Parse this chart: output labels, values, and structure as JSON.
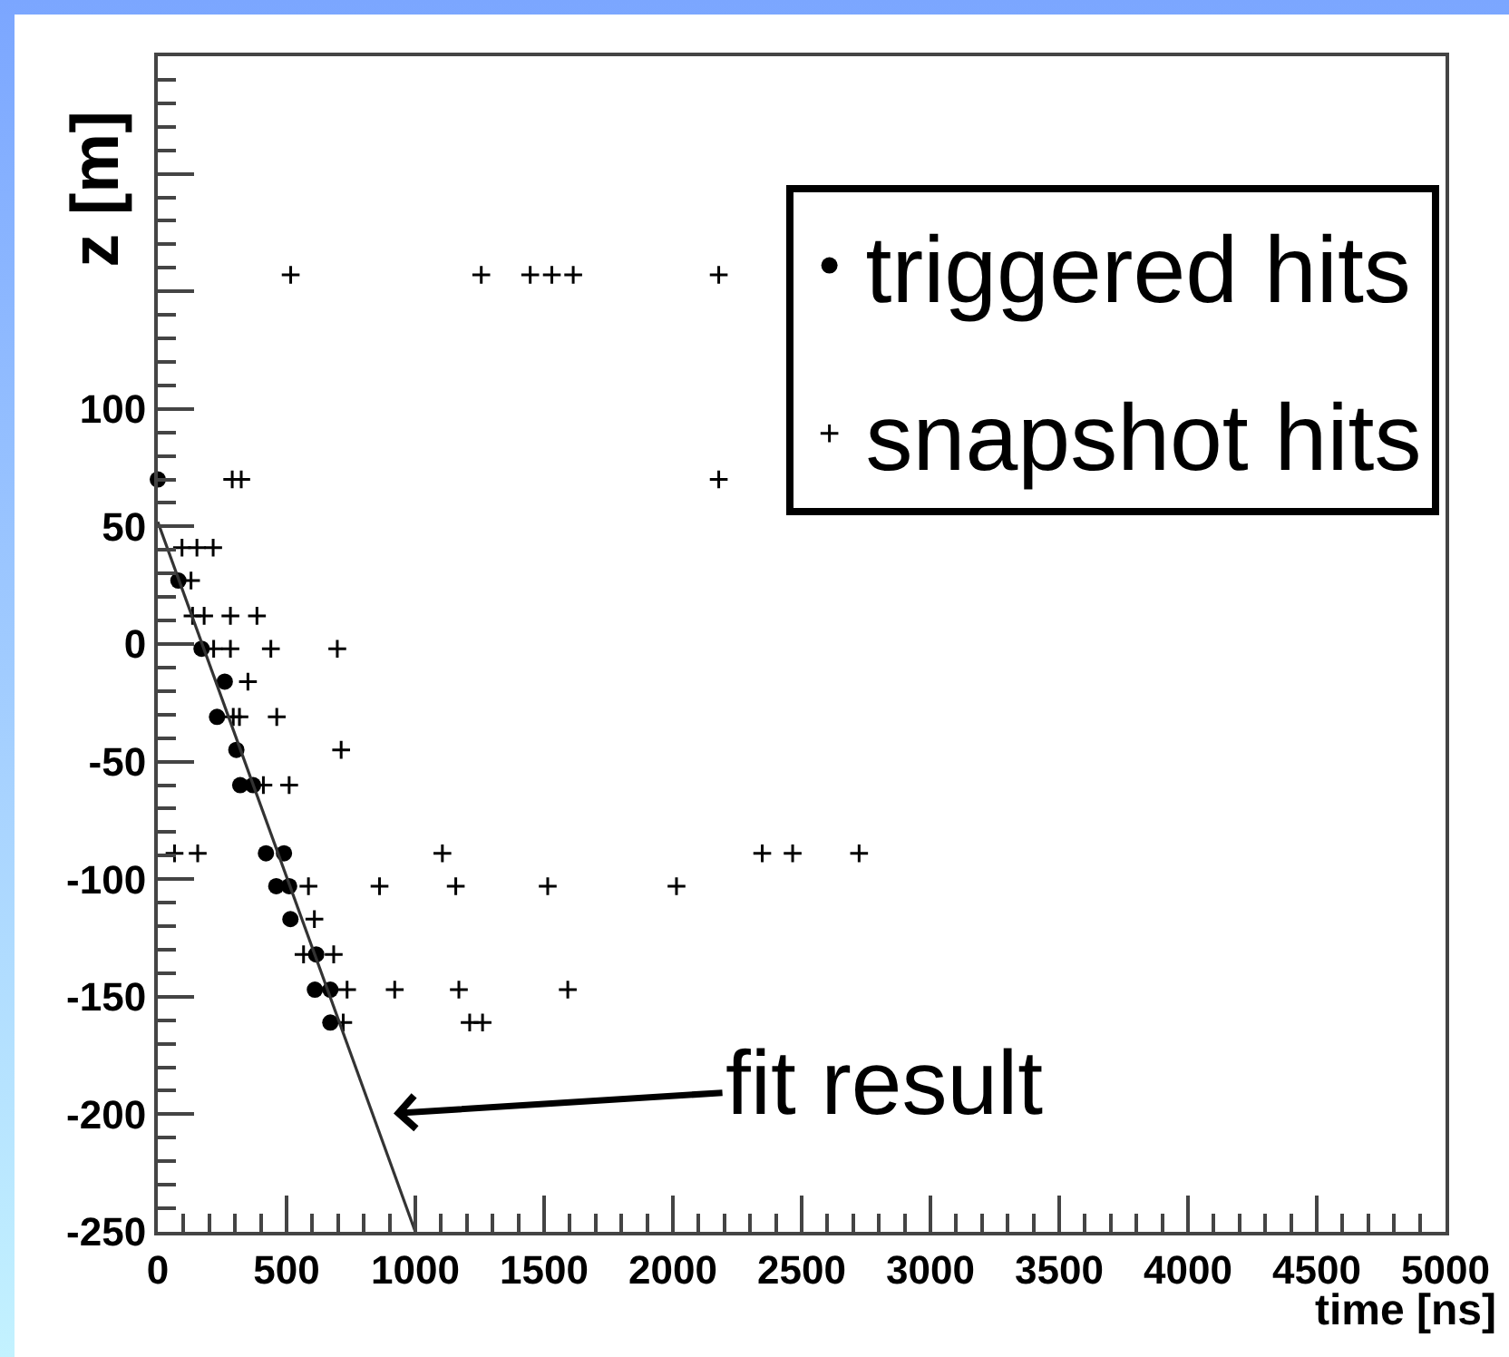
{
  "chart_data": {
    "type": "scatter",
    "xlabel": "time [ns]",
    "ylabel": "z [m]",
    "xlim": [
      0,
      5000
    ],
    "xticks": [
      0,
      500,
      1000,
      1500,
      2000,
      2500,
      3000,
      3500,
      4000,
      4500,
      5000
    ],
    "ylim": [
      -250,
      250
    ],
    "yticks": [
      -250,
      -200,
      -150,
      -100,
      -50,
      0,
      50,
      100,
      {
        "value": 150,
        "label": null
      },
      {
        "value": 200,
        "label": null
      }
    ],
    "grid": false,
    "legend": "top right",
    "annotations": [
      "fit result"
    ],
    "series": [
      {
        "name": "triggered hits",
        "color": "#000000",
        "marker": "circle",
        "x": [
          0,
          80,
          170,
          260,
          230,
          305,
          320,
          370,
          420,
          490,
          460,
          510,
          515,
          615,
          610,
          670,
          670
        ],
        "values": [
          70,
          27,
          -2,
          -16,
          -31,
          -45,
          -60,
          -60,
          -89,
          -89,
          -103,
          -103,
          -117,
          -132,
          -147,
          -147,
          -161
        ]
      },
      {
        "name": "snapshot hits",
        "color": "#000000",
        "marker": "cross",
        "x": [
          516,
          1256,
          1446,
          1530,
          1613,
          2178,
          289,
          324,
          2178,
          94,
          152,
          215,
          129,
          135,
          180,
          282,
          385,
          217,
          282,
          439,
          697,
          350,
          293,
          317,
          462,
          712,
          410,
          510,
          65,
          155,
          1105,
          2347,
          2465,
          2723,
          585,
          861,
          1157,
          1514,
          2014,
          608,
          566,
          683,
          735,
          920,
          1169,
          1592,
          720,
          1211,
          1261
        ],
        "values": [
          157,
          157,
          157,
          157,
          157,
          157,
          70,
          70,
          70,
          41,
          41,
          41,
          27,
          12,
          12,
          12,
          12,
          -2,
          -2,
          -2,
          -2,
          -16,
          -31,
          -31,
          -31,
          -45,
          -60,
          -60,
          -89,
          -89,
          -89,
          -89,
          -89,
          -89,
          -103,
          -103,
          -103,
          -103,
          -103,
          -117,
          -132,
          -132,
          -147,
          -147,
          -147,
          -147,
          -161,
          -161,
          -161
        ]
      },
      {
        "type": "line",
        "color": "#333333",
        "marker": "none",
        "line_style": "solid",
        "x": [
          0,
          1000
        ],
        "values": [
          52,
          -250
        ]
      }
    ]
  }
}
